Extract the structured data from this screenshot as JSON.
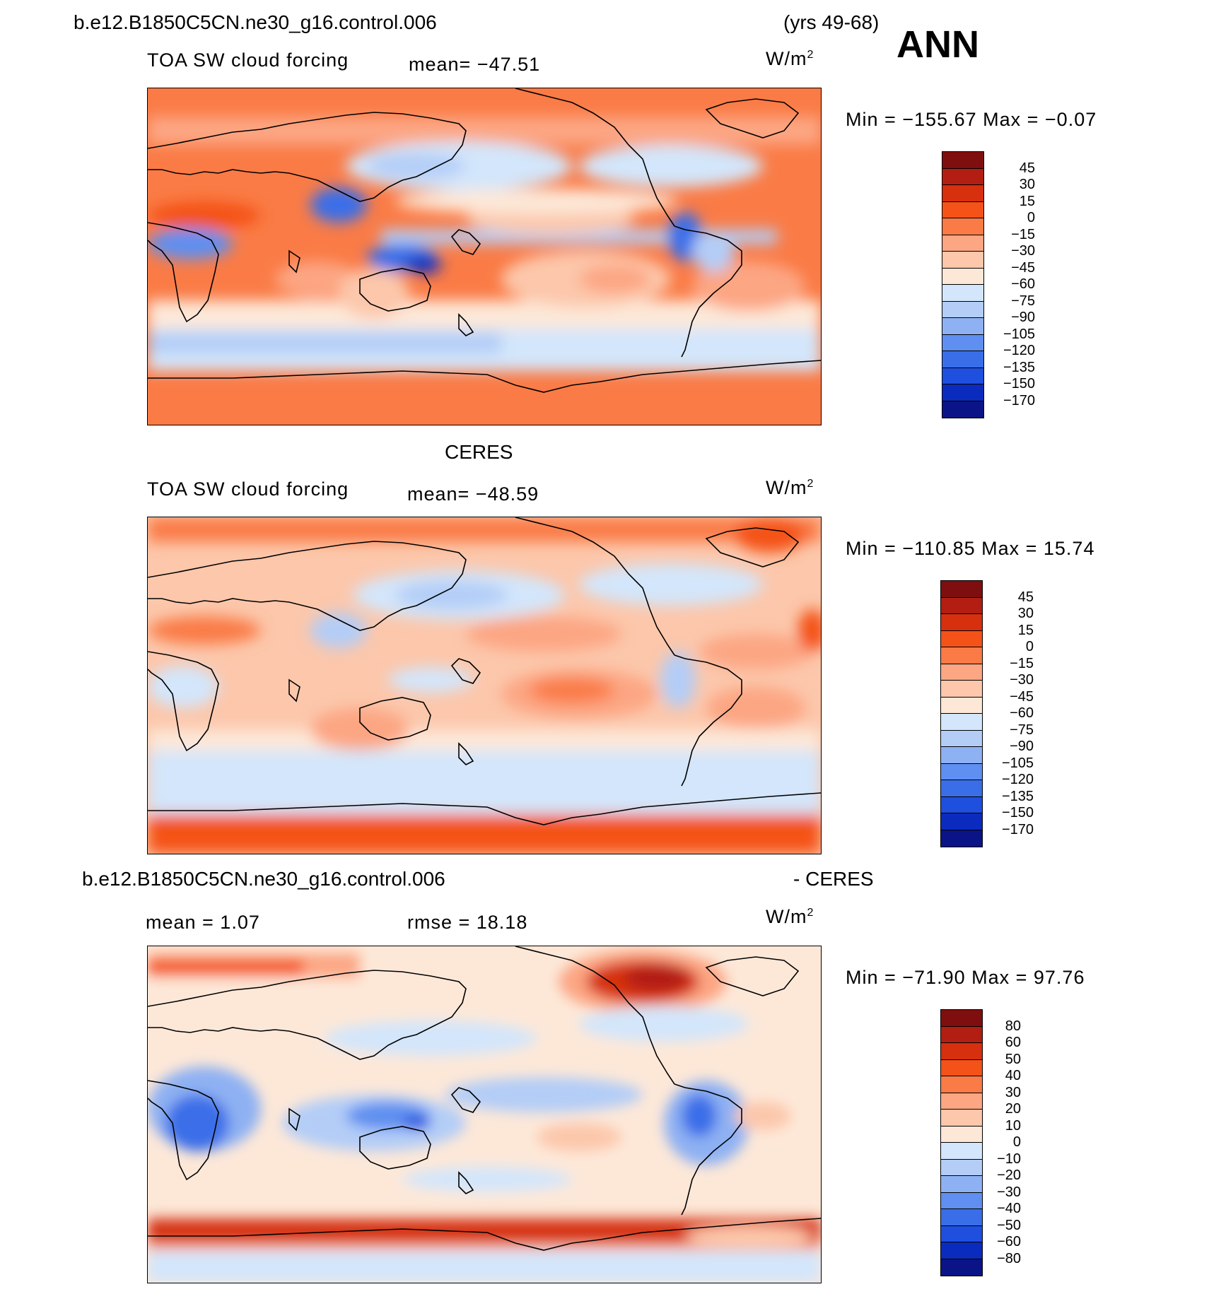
{
  "header": {
    "case_name": "b.e12.B1850C5CN.ne30_g16.control.006",
    "years": "(yrs 49-68)",
    "season": "ANN"
  },
  "colors": {
    "pos_scale": [
      "#7f0f0f",
      "#b21e12",
      "#d6300e",
      "#f45218",
      "#fa7b46",
      "#fca683",
      "#fcc7ab",
      "#fde8d8",
      "#d3e6fb",
      "#b3cdf7",
      "#8eb1f3",
      "#5f8ff0",
      "#3a6ee8",
      "#1f4fdf",
      "#0b2bbf",
      "#0a1486"
    ],
    "diff_scale": [
      "#7f0f0f",
      "#b21e12",
      "#d6300e",
      "#f45218",
      "#fa7b46",
      "#fca683",
      "#fcc7ab",
      "#fde8d8",
      "#d3e6fb",
      "#b3cdf7",
      "#8eb1f3",
      "#5f8ff0",
      "#3a6ee8",
      "#1f4fdf",
      "#0b2bbf",
      "#0a1486"
    ]
  },
  "panels": [
    {
      "title": "",
      "variable": "TOA SW cloud forcing",
      "mean_label": "mean= −47.51",
      "units": "W/m",
      "units_exp": "2",
      "minmax": "Min = −155.67 Max =  −0.07",
      "colorbar_labels": [
        "45",
        "30",
        "15",
        "0",
        "−15",
        "−30",
        "−45",
        "−60",
        "−75",
        "−90",
        "−105",
        "−120",
        "−135",
        "−150",
        "−170"
      ]
    },
    {
      "title": "CERES",
      "variable": "TOA SW cloud forcing",
      "mean_label": "mean= −48.59",
      "units": "W/m",
      "units_exp": "2",
      "minmax": "Min = −110.85 Max =  15.74",
      "colorbar_labels": [
        "45",
        "30",
        "15",
        "0",
        "−15",
        "−30",
        "−45",
        "−60",
        "−75",
        "−90",
        "−105",
        "−120",
        "−135",
        "−150",
        "−170"
      ]
    },
    {
      "title_left": "b.e12.B1850C5CN.ne30_g16.control.006",
      "title_right": "- CERES",
      "mean_label": "mean =   1.07",
      "rmse_label": "rmse =   18.18",
      "units": "W/m",
      "units_exp": "2",
      "minmax": "Min = −71.90 Max =  97.76",
      "colorbar_labels": [
        "80",
        "60",
        "50",
        "40",
        "30",
        "20",
        "10",
        "0",
        "−10",
        "−20",
        "−30",
        "−40",
        "−50",
        "−60",
        "−80"
      ]
    }
  ]
}
